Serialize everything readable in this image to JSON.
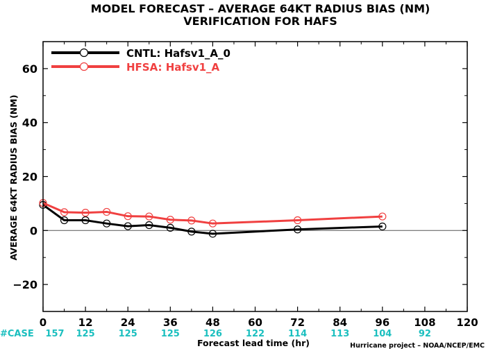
{
  "chart_data": {
    "type": "line",
    "title": "MODEL FORECAST – AVERAGE 64KT RADIUS BIAS (NM)",
    "subtitle": "VERIFICATION FOR HAFS",
    "xlabel": "Forecast lead time (hr)",
    "ylabel": "AVERAGE 64KT RADIUS BIAS (NM)",
    "xlim": [
      0,
      120
    ],
    "ylim": [
      -30,
      70
    ],
    "xticks": [
      0,
      12,
      24,
      36,
      48,
      60,
      72,
      84,
      96,
      108,
      120
    ],
    "yticks": [
      -20,
      0,
      20,
      40,
      60
    ],
    "ytick_labels": [
      "−20",
      "0",
      "20",
      "40",
      "60"
    ],
    "legend_position": "top-left",
    "series": [
      {
        "name": "CNTL: Hafsv1_A_0",
        "color": "#000000",
        "x": [
          0,
          6,
          12,
          18,
          24,
          30,
          36,
          42,
          48,
          72,
          96
        ],
        "y": [
          9.5,
          3.8,
          3.8,
          2.6,
          1.6,
          2.0,
          1.0,
          -0.4,
          -1.2,
          0.4,
          1.5
        ]
      },
      {
        "name": "HFSA: Hafsv1_A",
        "color": "#f04040",
        "x": [
          0,
          6,
          12,
          18,
          24,
          30,
          36,
          42,
          48,
          72,
          96
        ],
        "y": [
          10.2,
          6.8,
          6.6,
          6.9,
          5.3,
          5.2,
          4.0,
          3.7,
          2.6,
          3.8,
          5.2
        ]
      }
    ],
    "case_counts": {
      "label": "#CASE",
      "x": [
        0,
        12,
        24,
        36,
        48,
        60,
        72,
        84,
        96,
        108
      ],
      "values": [
        "157",
        "125",
        "125",
        "125",
        "126",
        "122",
        "114",
        "113",
        "104",
        "92"
      ]
    },
    "credit": "Hurricane project – NOAA/NCEP/EMC"
  }
}
